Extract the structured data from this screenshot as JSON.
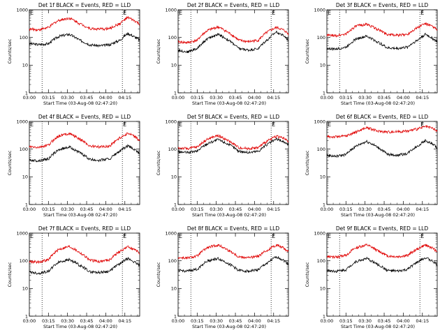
{
  "shared": {
    "ylabel": "Counts/sec",
    "xlabel": "Start Time (03-Aug-08 02:47:20)",
    "y_ticks": [
      "1",
      "10",
      "100",
      "1000"
    ],
    "x_ticks": [
      "03:00",
      "03:15",
      "03:30",
      "03:45",
      "04:00",
      "04:15"
    ],
    "marker_left": "E",
    "marker_right": "E",
    "colors": {
      "events": "#000000",
      "lld": "#e00000",
      "axes": "#000000"
    }
  },
  "chart_data": [
    {
      "type": "line",
      "title": "Det 1f BLACK = Events, RED = LLD",
      "ylim": [
        1,
        1000
      ],
      "yscale": "log",
      "xlim_minutes": [
        12.7,
        99.3
      ],
      "vlines_minutes": [
        22.7,
        85.7
      ],
      "series": [
        {
          "label": "Events",
          "x_minutes": [
            12.7,
            20,
            28,
            36,
            44,
            52,
            60,
            68,
            76,
            84,
            90,
            96,
            99.3
          ],
          "values": [
            60,
            55,
            60,
            110,
            130,
            80,
            55,
            50,
            55,
            80,
            140,
            100,
            80
          ]
        },
        {
          "label": "LLD",
          "x_minutes": [
            12.7,
            20,
            28,
            36,
            44,
            52,
            60,
            68,
            76,
            84,
            90,
            96,
            99.3
          ],
          "values": [
            200,
            190,
            230,
            420,
            500,
            320,
            210,
            200,
            210,
            320,
            520,
            380,
            300
          ]
        }
      ]
    },
    {
      "type": "line",
      "title": "Det 2f BLACK = Events, RED = LLD",
      "ylim": [
        1,
        1000
      ],
      "yscale": "log",
      "xlim_minutes": [
        12.7,
        99.3
      ],
      "vlines_minutes": [
        22.7,
        85.7
      ],
      "series": [
        {
          "label": "Events",
          "x_minutes": [
            12.7,
            20,
            28,
            36,
            44,
            52,
            60,
            68,
            76,
            84,
            90,
            96,
            99.3
          ],
          "values": [
            35,
            30,
            40,
            90,
            130,
            80,
            40,
            35,
            40,
            90,
            160,
            110,
            80
          ]
        },
        {
          "label": "LLD",
          "x_minutes": [
            12.7,
            20,
            28,
            36,
            44,
            52,
            60,
            68,
            76,
            84,
            90,
            96,
            99.3
          ],
          "values": [
            70,
            65,
            80,
            180,
            240,
            150,
            80,
            70,
            80,
            170,
            230,
            180,
            130
          ]
        }
      ]
    },
    {
      "type": "line",
      "title": "Det 3f BLACK = Events, RED = LLD",
      "ylim": [
        1,
        1000
      ],
      "yscale": "log",
      "xlim_minutes": [
        12.7,
        99.3
      ],
      "vlines_minutes": [
        22.7,
        85.7
      ],
      "series": [
        {
          "label": "Events",
          "x_minutes": [
            12.7,
            20,
            28,
            36,
            44,
            52,
            60,
            68,
            76,
            84,
            90,
            96,
            99.3
          ],
          "values": [
            40,
            38,
            45,
            90,
            110,
            70,
            42,
            40,
            45,
            80,
            130,
            90,
            70
          ]
        },
        {
          "label": "LLD",
          "x_minutes": [
            12.7,
            20,
            28,
            36,
            44,
            52,
            60,
            68,
            76,
            84,
            90,
            96,
            99.3
          ],
          "values": [
            120,
            115,
            135,
            260,
            300,
            200,
            130,
            120,
            130,
            230,
            320,
            240,
            190
          ]
        }
      ]
    },
    {
      "type": "line",
      "title": "Det 4f BLACK = Events, RED = LLD",
      "ylim": [
        1,
        1000
      ],
      "yscale": "log",
      "xlim_minutes": [
        12.7,
        99.3
      ],
      "vlines_minutes": [
        22.7,
        85.7
      ],
      "series": [
        {
          "label": "Events",
          "x_minutes": [
            12.7,
            20,
            28,
            36,
            44,
            52,
            60,
            68,
            76,
            84,
            90,
            96,
            99.3
          ],
          "values": [
            40,
            38,
            45,
            95,
            120,
            75,
            42,
            40,
            45,
            85,
            130,
            90,
            70
          ]
        },
        {
          "label": "LLD",
          "x_minutes": [
            12.7,
            20,
            28,
            36,
            44,
            52,
            60,
            68,
            76,
            84,
            90,
            96,
            99.3
          ],
          "values": [
            120,
            115,
            140,
            300,
            370,
            230,
            130,
            120,
            130,
            260,
            370,
            270,
            200
          ]
        }
      ]
    },
    {
      "type": "line",
      "title": "Det 5f BLACK = Events, RED = LLD",
      "ylim": [
        1,
        1000
      ],
      "yscale": "log",
      "xlim_minutes": [
        12.7,
        99.3
      ],
      "vlines_minutes": [
        22.7,
        85.7
      ],
      "series": [
        {
          "label": "Events",
          "x_minutes": [
            12.7,
            20,
            28,
            36,
            44,
            52,
            60,
            68,
            76,
            84,
            90,
            96,
            99.3
          ],
          "values": [
            80,
            75,
            85,
            160,
            220,
            150,
            85,
            75,
            85,
            160,
            230,
            180,
            140
          ]
        },
        {
          "label": "LLD",
          "x_minutes": [
            12.7,
            20,
            28,
            36,
            44,
            52,
            60,
            68,
            76,
            84,
            90,
            96,
            99.3
          ],
          "values": [
            110,
            105,
            120,
            230,
            310,
            200,
            115,
            105,
            115,
            210,
            300,
            240,
            180
          ]
        }
      ]
    },
    {
      "type": "line",
      "title": "Det 6f BLACK = Events, RED = LLD",
      "ylim": [
        1,
        1000
      ],
      "yscale": "log",
      "xlim_minutes": [
        12.7,
        99.3
      ],
      "vlines_minutes": [],
      "series": [
        {
          "label": "Events",
          "x_minutes": [
            12.7,
            20,
            28,
            36,
            44,
            52,
            60,
            68,
            76,
            84,
            90,
            96,
            99.3
          ],
          "values": [
            60,
            55,
            65,
            130,
            190,
            120,
            65,
            60,
            70,
            130,
            200,
            150,
            110
          ]
        },
        {
          "label": "LLD",
          "x_minutes": [
            12.7,
            20,
            28,
            36,
            44,
            52,
            60,
            68,
            76,
            84,
            90,
            96,
            99.3
          ],
          "values": [
            280,
            280,
            300,
            420,
            600,
            450,
            420,
            430,
            450,
            540,
            650,
            560,
            430
          ]
        }
      ]
    },
    {
      "type": "line",
      "title": "Det 7f BLACK = Events, RED = LLD",
      "ylim": [
        1,
        1000
      ],
      "yscale": "log",
      "xlim_minutes": [
        12.7,
        99.3
      ],
      "vlines_minutes": [
        22.7,
        85.7
      ],
      "series": [
        {
          "label": "Events",
          "x_minutes": [
            12.7,
            20,
            28,
            36,
            44,
            52,
            60,
            68,
            76,
            84,
            90,
            96,
            99.3
          ],
          "values": [
            40,
            35,
            42,
            90,
            110,
            70,
            40,
            38,
            42,
            80,
            120,
            85,
            65
          ]
        },
        {
          "label": "LLD",
          "x_minutes": [
            12.7,
            20,
            28,
            36,
            44,
            52,
            60,
            68,
            76,
            84,
            90,
            96,
            99.3
          ],
          "values": [
            95,
            90,
            110,
            260,
            330,
            200,
            105,
            95,
            110,
            220,
            320,
            240,
            180
          ]
        }
      ]
    },
    {
      "type": "line",
      "title": "Det 8f BLACK = Events, RED = LLD",
      "ylim": [
        1,
        1000
      ],
      "yscale": "log",
      "xlim_minutes": [
        12.7,
        99.3
      ],
      "vlines_minutes": [
        22.7,
        85.7
      ],
      "series": [
        {
          "label": "Events",
          "x_minutes": [
            12.7,
            20,
            28,
            36,
            44,
            52,
            60,
            68,
            76,
            84,
            90,
            96,
            99.3
          ],
          "values": [
            45,
            42,
            50,
            100,
            120,
            80,
            45,
            42,
            48,
            90,
            140,
            100,
            75
          ]
        },
        {
          "label": "LLD",
          "x_minutes": [
            12.7,
            20,
            28,
            36,
            44,
            52,
            60,
            68,
            76,
            84,
            90,
            96,
            99.3
          ],
          "values": [
            130,
            125,
            150,
            300,
            370,
            240,
            140,
            130,
            145,
            260,
            380,
            280,
            210
          ]
        }
      ]
    },
    {
      "type": "line",
      "title": "Det 9f BLACK = Events, RED = LLD",
      "ylim": [
        1,
        1000
      ],
      "yscale": "log",
      "xlim_minutes": [
        12.7,
        99.3
      ],
      "vlines_minutes": [
        22.7,
        85.7
      ],
      "series": [
        {
          "label": "Events",
          "x_minutes": [
            12.7,
            20,
            28,
            36,
            44,
            52,
            60,
            68,
            76,
            84,
            90,
            96,
            99.3
          ],
          "values": [
            45,
            42,
            48,
            95,
            120,
            75,
            45,
            42,
            48,
            90,
            130,
            95,
            70
          ]
        },
        {
          "label": "LLD",
          "x_minutes": [
            12.7,
            20,
            28,
            36,
            44,
            52,
            60,
            68,
            76,
            84,
            90,
            96,
            99.3
          ],
          "values": [
            140,
            135,
            160,
            300,
            370,
            240,
            150,
            140,
            155,
            270,
            370,
            280,
            210
          ]
        }
      ]
    }
  ]
}
